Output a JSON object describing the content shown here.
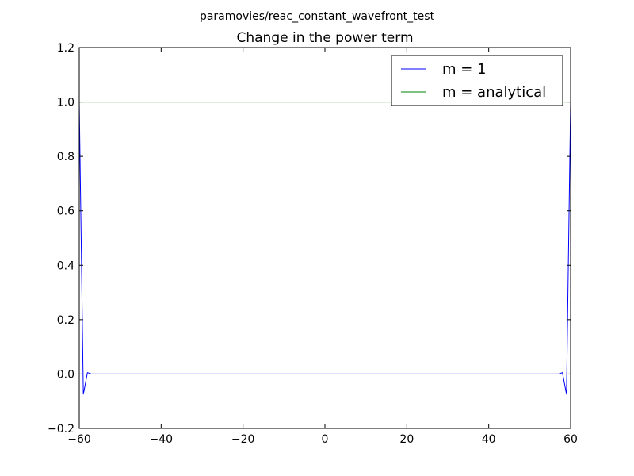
{
  "suptitle": "paramovies/reac_constant_wavefront_test",
  "chart_data": {
    "type": "line",
    "title": "Change in the power term",
    "xlabel": "",
    "ylabel": "",
    "xlim": [
      -60,
      60
    ],
    "ylim": [
      -0.2,
      1.2
    ],
    "xticks": [
      -60,
      -40,
      -20,
      0,
      20,
      40,
      60
    ],
    "xtick_labels": [
      "−60",
      "−40",
      "−20",
      "0",
      "20",
      "40",
      "60"
    ],
    "yticks": [
      -0.2,
      0.0,
      0.2,
      0.4,
      0.6,
      0.8,
      1.0,
      1.2
    ],
    "ytick_labels": [
      "−0.2",
      "0.0",
      "0.2",
      "0.4",
      "0.6",
      "0.8",
      "1.0",
      "1.2"
    ],
    "grid": false,
    "legend_position": "top-right",
    "series": [
      {
        "name": "m = 1",
        "color": "#0000ff",
        "x": [
          -60,
          -59,
          -58,
          -57,
          -56,
          -55,
          -50,
          -40,
          -20,
          0,
          20,
          40,
          50,
          55,
          56,
          57,
          58,
          59,
          60
        ],
        "y": [
          1.0,
          -0.075,
          0.005,
          0.0,
          0.0,
          0.0,
          0.0,
          0.0,
          0.0,
          0.0,
          0.0,
          0.0,
          0.0,
          0.0,
          0.0,
          0.0,
          0.005,
          -0.075,
          1.0
        ]
      },
      {
        "name": "m = analytical",
        "color": "#008000",
        "x": [
          -60,
          60
        ],
        "y": [
          1.0,
          1.0
        ]
      }
    ]
  }
}
